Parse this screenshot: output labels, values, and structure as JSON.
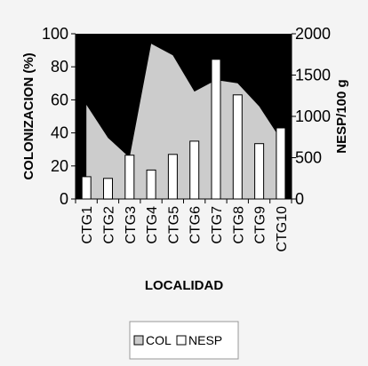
{
  "chart_data": {
    "type": "bar",
    "categories": [
      "CTG1",
      "CTG2",
      "CTG3",
      "CTG4",
      "CTG5",
      "CTG6",
      "CTG7",
      "CTG8",
      "CTG9",
      "CTG10"
    ],
    "series": [
      {
        "name": "COL",
        "axis": "left",
        "render": "area",
        "values": [
          57,
          37,
          25,
          94,
          87,
          65,
          72,
          70,
          56,
          36
        ]
      },
      {
        "name": "NESP",
        "axis": "right",
        "render": "bar",
        "values": [
          270,
          250,
          530,
          350,
          540,
          700,
          1690,
          1260,
          670,
          860
        ]
      }
    ],
    "xlabel": "LOCALIDAD",
    "ylabel": "COLONIZACION (%)",
    "y2label": "NESP/100 g",
    "ylim": [
      0,
      100
    ],
    "y2lim": [
      0,
      2000
    ],
    "yticks": [
      "0",
      "20",
      "40",
      "60",
      "80",
      "100"
    ],
    "y2ticks": [
      "0",
      "500",
      "1000",
      "1500",
      "2000"
    ],
    "plot_background": "#000000",
    "area_color": "#cccccc",
    "bar_color": "#ffffff",
    "legend_position": "bottom",
    "legend": [
      "COL",
      "NESP"
    ]
  }
}
